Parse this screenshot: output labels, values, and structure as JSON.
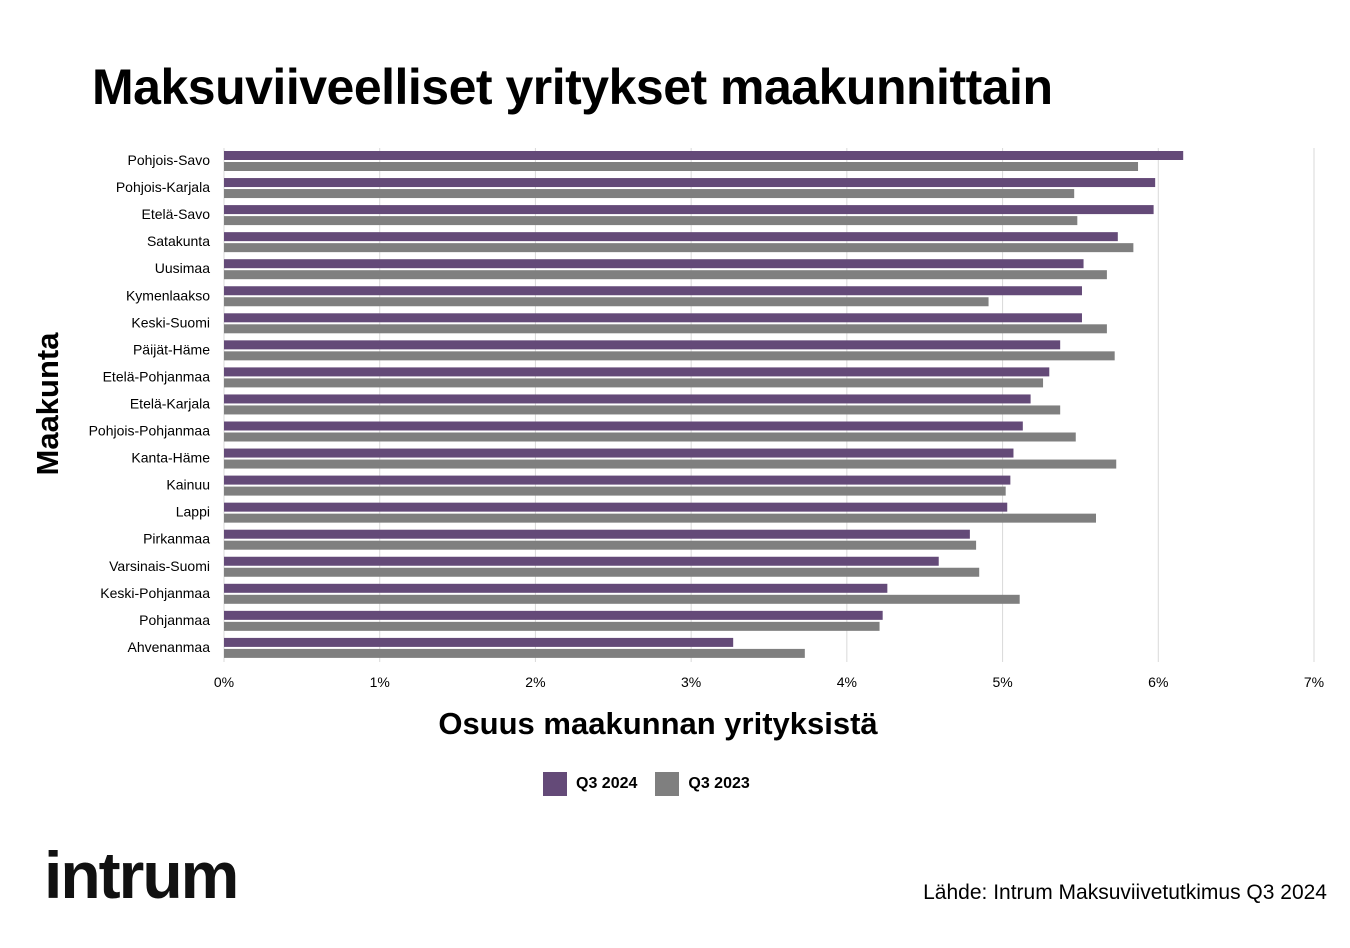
{
  "title": "Maksuviiveelliset yritykset maakunnittain",
  "source": "Lähde: Intrum Maksuviivetutkimus Q3 2024",
  "logo_text": "intrum",
  "colors": {
    "q3_2024": "#644a78",
    "q3_2023": "#7f7f7f",
    "grid": "#d9d9d9"
  },
  "chart_data": {
    "type": "bar",
    "orientation": "horizontal",
    "xlabel": "Osuus maakunnan yrityksistä",
    "ylabel": "Maakunta",
    "xlim": [
      0,
      7
    ],
    "x_ticks": [
      "0%",
      "1%",
      "2%",
      "3%",
      "4%",
      "5%",
      "6%",
      "7%"
    ],
    "grid": true,
    "legend_position": "bottom",
    "categories": [
      "Pohjois-Savo",
      "Pohjois-Karjala",
      "Etelä-Savo",
      "Satakunta",
      "Uusimaa",
      "Kymenlaakso",
      "Keski-Suomi",
      "Päijät-Häme",
      "Etelä-Pohjanmaa",
      "Etelä-Karjala",
      "Pohjois-Pohjanmaa",
      "Kanta-Häme",
      "Kainuu",
      "Lappi",
      "Pirkanmaa",
      "Varsinais-Suomi",
      "Keski-Pohjanmaa",
      "Pohjanmaa",
      "Ahvenanmaa"
    ],
    "series": [
      {
        "name": "Q3 2024",
        "values": [
          6.16,
          5.98,
          5.97,
          5.74,
          5.52,
          5.51,
          5.51,
          5.37,
          5.3,
          5.18,
          5.13,
          5.07,
          5.05,
          5.03,
          4.79,
          4.59,
          4.26,
          4.23,
          3.27
        ]
      },
      {
        "name": "Q3 2023",
        "values": [
          5.87,
          5.46,
          5.48,
          5.84,
          5.67,
          4.91,
          5.67,
          5.72,
          5.26,
          5.37,
          5.47,
          5.73,
          5.02,
          5.6,
          4.83,
          4.85,
          5.11,
          4.21,
          3.73
        ]
      }
    ]
  }
}
